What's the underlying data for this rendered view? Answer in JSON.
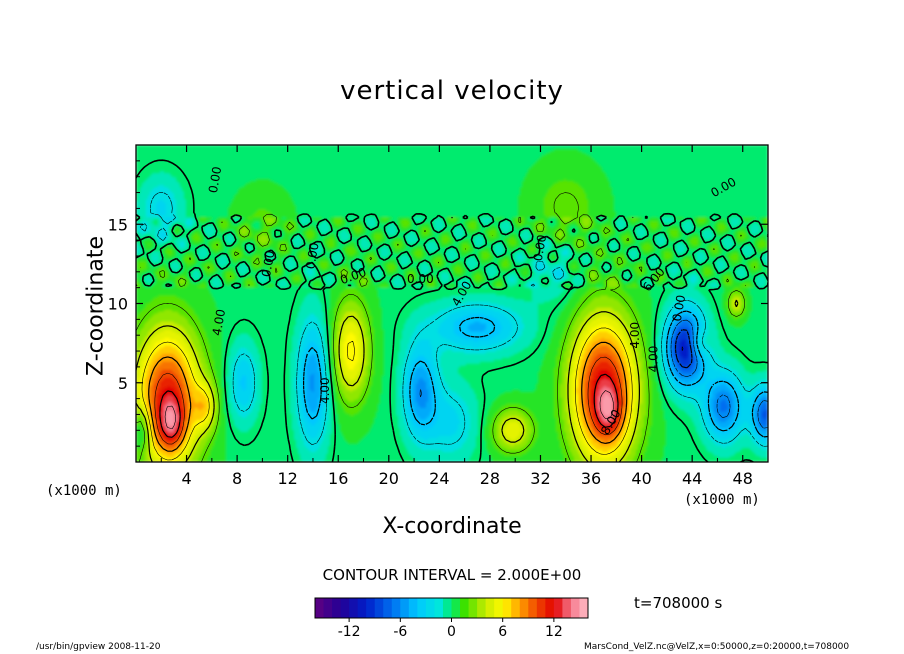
{
  "chart_data": {
    "type": "heatmap",
    "title": "vertical velocity",
    "xlabel": "X-coordinate",
    "ylabel": "Z-coordinate",
    "x_unit": "(x1000 m)",
    "y_unit": "(x1000 m)",
    "xlim": [
      0,
      50
    ],
    "ylim": [
      0,
      20
    ],
    "x_ticks": [
      "4",
      "8",
      "12",
      "16",
      "20",
      "24",
      "28",
      "32",
      "36",
      "40",
      "44",
      "48"
    ],
    "y_ticks": [
      "5",
      "10",
      "15"
    ],
    "contour_interval_label": "CONTOUR INTERVAL = 2.000E+00",
    "time_label": "t=708000 s",
    "colorbar": {
      "range": [
        -16,
        16
      ],
      "ticks": [
        "-12",
        "-6",
        "0",
        "6",
        "12"
      ]
    },
    "contour_labels": [
      "0.00",
      "0.00",
      "0.00",
      "0.00",
      "0.00",
      "0.00",
      "0.00",
      "0.00",
      "4.00",
      "4.00",
      "4.00",
      "4.00",
      "4.00",
      "6.00",
      "8.00"
    ],
    "cells": [
      {
        "x": 2.5,
        "z": 4.0,
        "w": 11,
        "rx": 2.6,
        "rz": 4.4
      },
      {
        "x": 2.8,
        "z": 2.4,
        "w": 5,
        "rx": 1.0,
        "rz": 1.6
      },
      {
        "x": 5.5,
        "z": 3.5,
        "w": 4,
        "rx": 0.9,
        "rz": 1.5
      },
      {
        "x": 37.0,
        "z": 4.5,
        "w": 12,
        "rx": 2.6,
        "rz": 4.6
      },
      {
        "x": 37.4,
        "z": 3.2,
        "w": 4,
        "rx": 1.0,
        "rz": 1.5
      },
      {
        "x": 17.0,
        "z": 7.0,
        "w": 6,
        "rx": 1.5,
        "rz": 3.2
      },
      {
        "x": 29.8,
        "z": 2.0,
        "w": 5,
        "rx": 1.6,
        "rz": 1.4
      },
      {
        "x": 44.5,
        "z": 7.5,
        "w": 4,
        "rx": 0.8,
        "rz": 1.0
      },
      {
        "x": 47.5,
        "z": 10.0,
        "w": 4,
        "rx": 0.7,
        "rz": 0.9
      },
      {
        "x": 14.0,
        "z": 5.0,
        "w": -6,
        "rx": 1.3,
        "rz": 4.0
      },
      {
        "x": 22.5,
        "z": 4.5,
        "w": -6,
        "rx": 1.4,
        "rz": 3.0
      },
      {
        "x": 27.0,
        "z": 8.5,
        "w": -5,
        "rx": 3.6,
        "rz": 1.6
      },
      {
        "x": 43.5,
        "z": 7.2,
        "w": -11,
        "rx": 1.6,
        "rz": 2.4
      },
      {
        "x": 46.5,
        "z": 3.5,
        "w": -7,
        "rx": 1.6,
        "rz": 2.2
      },
      {
        "x": 49.8,
        "z": 3.0,
        "w": -8,
        "rx": 1.1,
        "rz": 1.8
      },
      {
        "x": 0.5,
        "z": 2.0,
        "w": -4,
        "rx": 0.7,
        "rz": 1.5
      },
      {
        "x": 8.5,
        "z": 5.0,
        "w": -4,
        "rx": 1.2,
        "rz": 2.5
      },
      {
        "x": 2.0,
        "z": 16.0,
        "w": -3,
        "rx": 1.7,
        "rz": 2.0
      },
      {
        "x": 25.0,
        "z": 2.5,
        "w": -3,
        "rx": 2.0,
        "rz": 2.5
      },
      {
        "x": 33.0,
        "z": 12.0,
        "w": -2,
        "rx": 2.0,
        "rz": 2.0
      },
      {
        "x": 34.0,
        "z": 16.0,
        "w": 2,
        "rx": 2.5,
        "rz": 2.5
      },
      {
        "x": 10.0,
        "z": 15.0,
        "w": 1.5,
        "rx": 2.0,
        "rz": 2.0
      }
    ]
  },
  "footer": {
    "left": "/usr/bin/gpview  2008-11-20",
    "right": "MarsCond_VelZ.nc@VelZ,x=0:50000,z=0:20000,t=708000"
  }
}
